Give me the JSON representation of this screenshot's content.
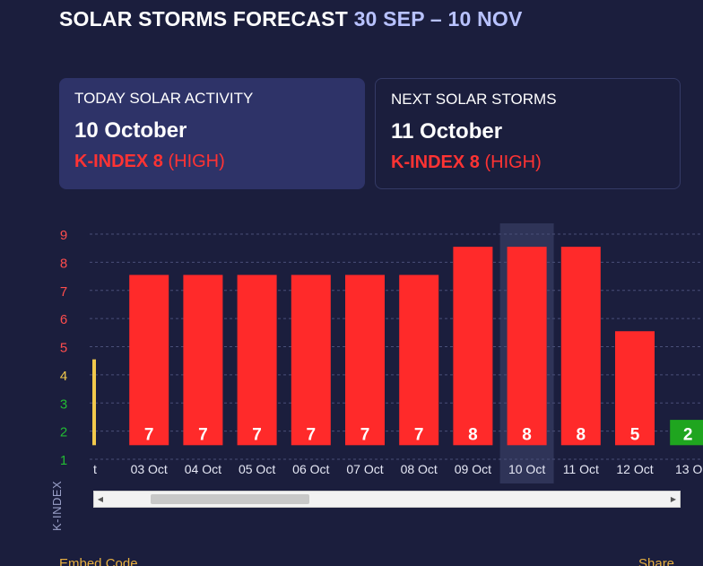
{
  "header": {
    "title": "SOLAR STORMS FORECAST",
    "range": "30 SEP – 10 NOV"
  },
  "today_card": {
    "label": "TODAY SOLAR ACTIVITY",
    "date": "10 October",
    "kindex": "K-INDEX 8",
    "level": "(HIGH)"
  },
  "next_card": {
    "label": "NEXT SOLAR STORMS",
    "date": "11 October",
    "kindex": "K-INDEX 8",
    "level": "(HIGH)"
  },
  "chart_data": {
    "type": "bar",
    "title": "",
    "xlabel": "",
    "ylabel": "K-INDEX",
    "ylim": [
      1,
      9
    ],
    "y_ticks": [
      1,
      2,
      3,
      4,
      5,
      6,
      7,
      8,
      9
    ],
    "y_tick_colors": {
      "1": "#22bb33",
      "2": "#22bb33",
      "3": "#22bb33",
      "4": "#f2c94c",
      "5": "#ff4d4d",
      "6": "#ff4d4d",
      "7": "#ff4d4d",
      "8": "#ff4d4d",
      "9": "#ff4d4d"
    },
    "grid": true,
    "highlighted_category": "10 Oct",
    "categories": [
      "t",
      "03 Oct",
      "04 Oct",
      "05 Oct",
      "06 Oct",
      "07 Oct",
      "08 Oct",
      "09 Oct",
      "10 Oct",
      "11 Oct",
      "12 Oct",
      "13 O"
    ],
    "values": [
      4,
      7,
      7,
      7,
      7,
      7,
      7,
      8,
      8,
      8,
      5,
      2
    ],
    "value_labels": [
      "",
      "7",
      "7",
      "7",
      "7",
      "7",
      "7",
      "8",
      "8",
      "8",
      "5",
      "2"
    ],
    "colors": [
      "#f2c94c",
      "#ff2a2a",
      "#ff2a2a",
      "#ff2a2a",
      "#ff2a2a",
      "#ff2a2a",
      "#ff2a2a",
      "#ff2a2a",
      "#ff2a2a",
      "#ff2a2a",
      "#ff2a2a",
      "#1fa51f"
    ]
  },
  "scroll": {
    "left_arrow": "◀",
    "right_arrow": "▶"
  },
  "footer": {
    "embed": "Embed Code",
    "share": "Share"
  }
}
